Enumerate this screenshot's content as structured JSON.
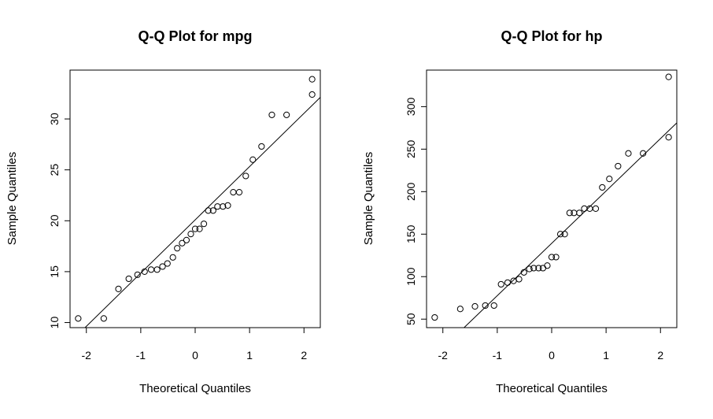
{
  "chart_data": [
    {
      "type": "scatter",
      "title": "Q-Q Plot for mpg",
      "xlabel": "Theoretical Quantiles",
      "ylabel": "Sample Quantiles",
      "xlim": [
        -2.3,
        2.3
      ],
      "ylim": [
        9.5,
        34.8
      ],
      "xticks": [
        -2,
        -1,
        0,
        1,
        2
      ],
      "yticks": [
        10,
        15,
        20,
        25,
        30
      ],
      "reference_line": {
        "intercept": 20.09,
        "slope": 5.23
      },
      "points": [
        [
          -2.15,
          10.4
        ],
        [
          -1.68,
          10.4
        ],
        [
          -1.41,
          13.3
        ],
        [
          -1.22,
          14.3
        ],
        [
          -1.06,
          14.7
        ],
        [
          -0.93,
          15.0
        ],
        [
          -0.81,
          15.2
        ],
        [
          -0.7,
          15.2
        ],
        [
          -0.6,
          15.5
        ],
        [
          -0.51,
          15.8
        ],
        [
          -0.41,
          16.4
        ],
        [
          -0.33,
          17.3
        ],
        [
          -0.24,
          17.8
        ],
        [
          -0.16,
          18.1
        ],
        [
          -0.08,
          18.7
        ],
        [
          0.0,
          19.2
        ],
        [
          0.08,
          19.2
        ],
        [
          0.16,
          19.7
        ],
        [
          0.24,
          21.0
        ],
        [
          0.33,
          21.0
        ],
        [
          0.41,
          21.4
        ],
        [
          0.51,
          21.4
        ],
        [
          0.6,
          21.5
        ],
        [
          0.7,
          22.8
        ],
        [
          0.81,
          22.8
        ],
        [
          0.93,
          24.4
        ],
        [
          1.06,
          26.0
        ],
        [
          1.22,
          27.3
        ],
        [
          1.41,
          30.4
        ],
        [
          1.68,
          30.4
        ],
        [
          2.15,
          32.4
        ],
        [
          2.15,
          33.9
        ]
      ]
    },
    {
      "type": "scatter",
      "title": "Q-Q Plot for hp",
      "xlabel": "Theoretical Quantiles",
      "ylabel": "Sample Quantiles",
      "xlim": [
        -2.3,
        2.3
      ],
      "ylim": [
        40,
        343
      ],
      "xticks": [
        -2,
        -1,
        0,
        1,
        2
      ],
      "yticks": [
        50,
        100,
        150,
        200,
        250,
        300
      ],
      "reference_line": {
        "intercept": 139.2,
        "slope": 61.6
      },
      "points": [
        [
          -2.15,
          52
        ],
        [
          -1.68,
          62
        ],
        [
          -1.41,
          65
        ],
        [
          -1.22,
          66
        ],
        [
          -1.06,
          66
        ],
        [
          -0.93,
          91
        ],
        [
          -0.81,
          93
        ],
        [
          -0.7,
          95
        ],
        [
          -0.6,
          97
        ],
        [
          -0.51,
          105
        ],
        [
          -0.41,
          109
        ],
        [
          -0.33,
          110
        ],
        [
          -0.24,
          110
        ],
        [
          -0.16,
          110
        ],
        [
          -0.08,
          113
        ],
        [
          0.0,
          123
        ],
        [
          0.08,
          123
        ],
        [
          0.16,
          150
        ],
        [
          0.24,
          150
        ],
        [
          0.33,
          175
        ],
        [
          0.41,
          175
        ],
        [
          0.51,
          175
        ],
        [
          0.6,
          180
        ],
        [
          0.7,
          180
        ],
        [
          0.81,
          180
        ],
        [
          0.93,
          205
        ],
        [
          1.06,
          215
        ],
        [
          1.22,
          230
        ],
        [
          1.41,
          245
        ],
        [
          1.68,
          245
        ],
        [
          2.15,
          264
        ],
        [
          2.15,
          335
        ]
      ]
    }
  ]
}
